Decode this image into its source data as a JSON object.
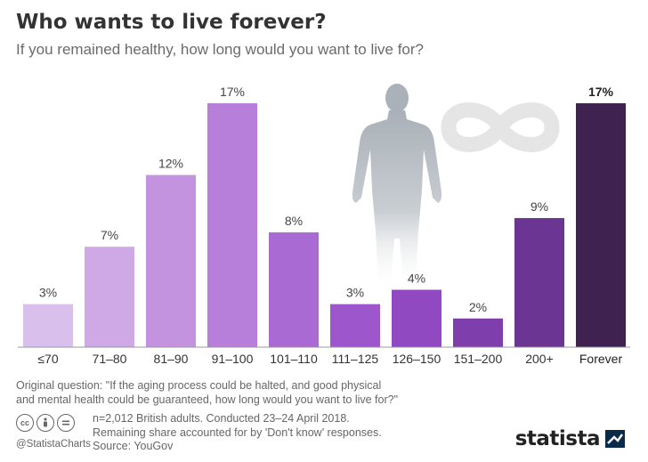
{
  "header": {
    "title": "Who wants to live forever?",
    "subtitle": "If you remained healthy, how long would you want to live for?"
  },
  "chart_data": {
    "type": "bar",
    "title": "Who wants to live forever?",
    "subtitle": "If you remained healthy, how long would you want to live for?",
    "categories": [
      "≤70",
      "71–80",
      "81–90",
      "91–100",
      "101–110",
      "111–125",
      "126–150",
      "151–200",
      "200+",
      "Forever"
    ],
    "values": [
      3,
      7,
      12,
      17,
      8,
      3,
      4,
      2,
      9,
      17
    ],
    "value_labels": [
      "3%",
      "7%",
      "12%",
      "17%",
      "8%",
      "3%",
      "4%",
      "2%",
      "9%",
      "17%"
    ],
    "unit": "%",
    "colors": [
      "#d9bfec",
      "#cfa8e6",
      "#c393df",
      "#b77fda",
      "#a96ad4",
      "#9e56cc",
      "#9049c0",
      "#7e3fad",
      "#6b3594",
      "#3f2250"
    ],
    "xlabel": "",
    "ylabel": "",
    "ylim": [
      0,
      17
    ],
    "grid": false,
    "legend": "none"
  },
  "footer": {
    "question_line1": "Original question: \"If the aging process could be halted, and good physical",
    "question_line2": "and mental health could be guaranteed, how long would you want to live for?\"",
    "sample": "n=2,012 British adults. Conducted 23–24 April 2018.",
    "remaining": "Remaining share accounted for by 'Don't know' responses.",
    "source": "Source: YouGov",
    "handle": "@StatistaCharts",
    "brand": "statista",
    "cc_icons": [
      "cc-icon",
      "attribution-icon",
      "no-derivatives-icon"
    ]
  }
}
